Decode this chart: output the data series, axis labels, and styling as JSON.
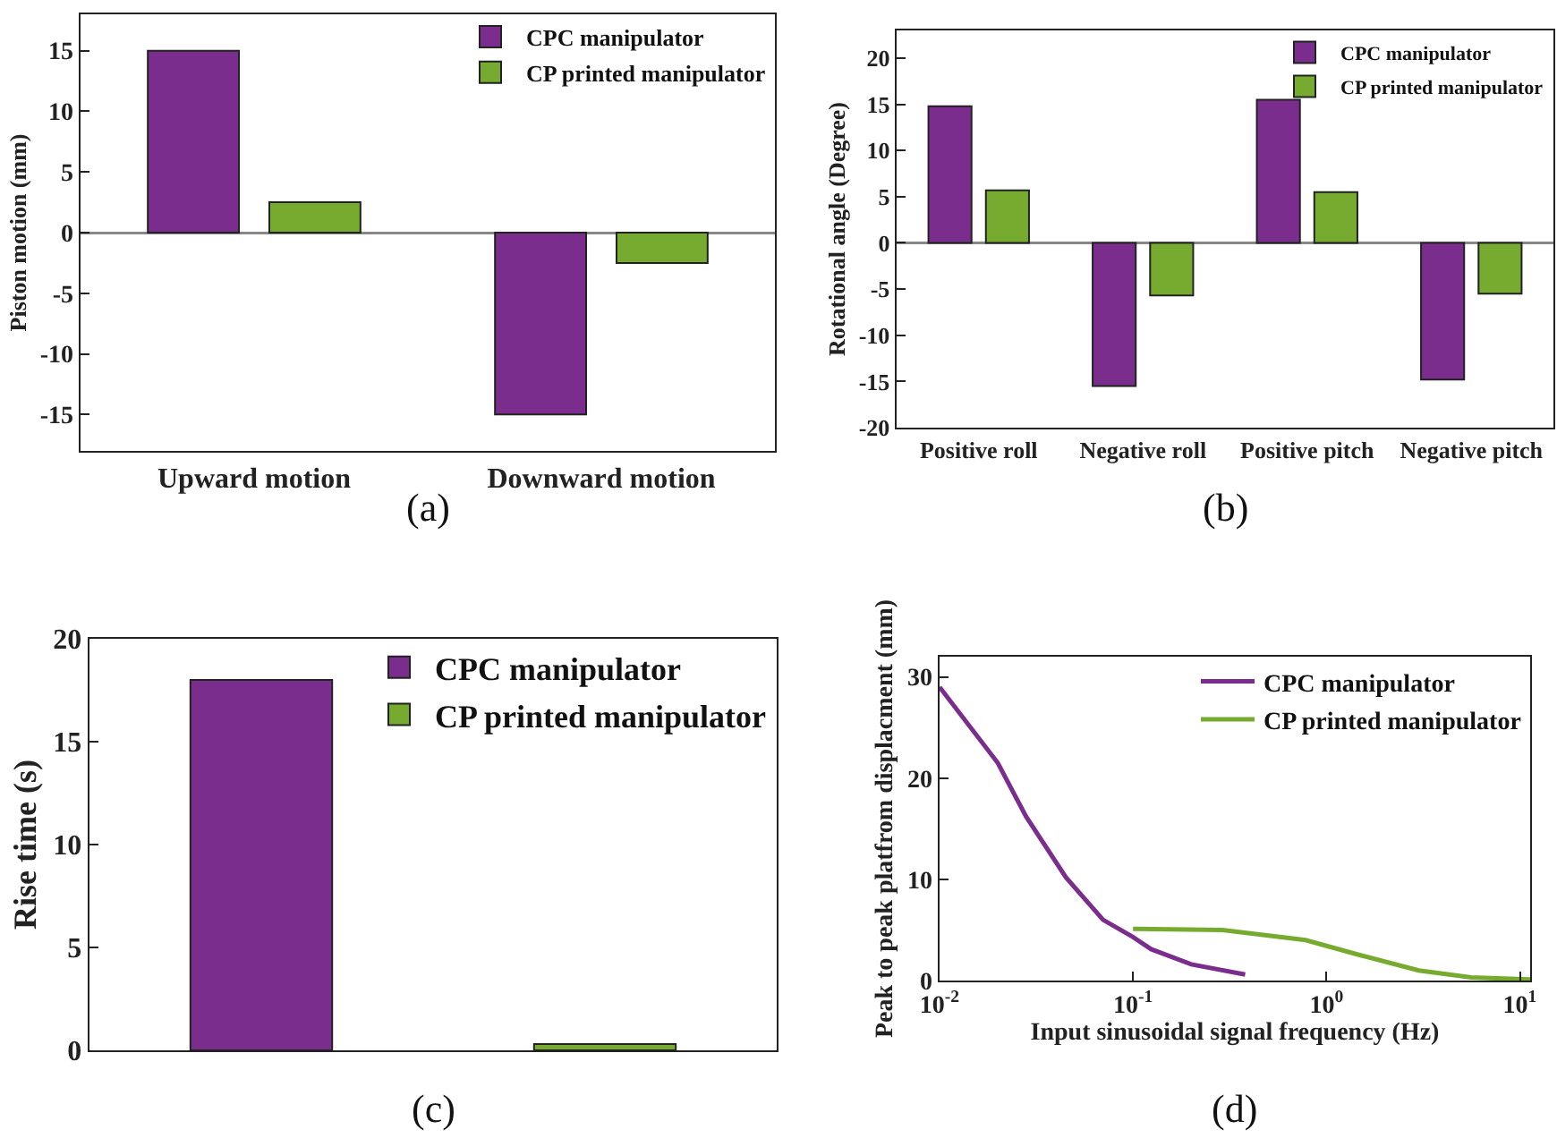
{
  "chart_data": [
    {
      "type": "bar",
      "ylabel": "Piston motion (mm)",
      "categories": [
        "Upward motion",
        "Downward motion"
      ],
      "ylim": [
        -18,
        18
      ],
      "yticks": [
        -15,
        -10,
        -5,
        0,
        5,
        10,
        15
      ],
      "legend": "top right",
      "annotations": [
        "(a)"
      ],
      "series": [
        {
          "name": "CPC manipulator",
          "color": "#7b2d8e",
          "values": [
            15,
            -15
          ]
        },
        {
          "name": "CP printed manipulator",
          "color": "#77ab30",
          "values": [
            2.5,
            -2.5
          ]
        }
      ]
    },
    {
      "type": "bar",
      "ylabel": "Rotational angle (Degree)",
      "categories": [
        "Positive roll",
        "Negative roll",
        "Positive pitch",
        "Negative pitch"
      ],
      "ylim": [
        -20,
        23
      ],
      "yticks": [
        -20,
        -15,
        -10,
        -5,
        0,
        5,
        10,
        15,
        20
      ],
      "legend": "top right",
      "annotations": [
        "(b)"
      ],
      "series": [
        {
          "name": "CPC manipulator",
          "color": "#7b2d8e",
          "values": [
            14.8,
            -15.5,
            15.5,
            -14.8
          ]
        },
        {
          "name": "CP printed manipulator",
          "color": "#77ab30",
          "values": [
            5.7,
            -5.7,
            5.5,
            -5.5
          ]
        }
      ]
    },
    {
      "type": "bar",
      "ylabel": "Rise time (s)",
      "categories": [
        null,
        null
      ],
      "ylim": [
        0,
        20
      ],
      "yticks": [
        0,
        5,
        10,
        15,
        20
      ],
      "legend": "top right",
      "annotations": [
        "(c)"
      ],
      "series": [
        {
          "name": "CPC manipulator",
          "color": "#7b2d8e",
          "values": [
            18,
            null
          ]
        },
        {
          "name": "CP printed manipulator",
          "color": "#77ab30",
          "values": [
            null,
            0.3
          ]
        }
      ]
    },
    {
      "type": "line",
      "xlabel": "Input sinusoidal signal frequency (Hz)",
      "ylabel": "Peak to peak platfrom displacment (mm)",
      "log": "x",
      "xlim": [
        0.01,
        11.3
      ],
      "xticks": [
        {
          "value": 0.01,
          "label": "10$^{-2}$"
        },
        {
          "value": 0.1,
          "label": "10$^{-1}$"
        },
        {
          "value": 1,
          "label": "10$^{0}$"
        },
        {
          "value": 10,
          "label": "10$^{1}$"
        }
      ],
      "ylim": [
        0,
        32
      ],
      "yticks": [
        0,
        10,
        20,
        30
      ],
      "legend": "top right",
      "annotations": [
        "(d)"
      ],
      "series": [
        {
          "name": "CPC manipulator",
          "color": "#7b2d8e",
          "x": [
            0.01,
            0.02,
            0.028,
            0.045,
            0.07,
            0.1,
            0.124,
            0.2,
            0.38
          ],
          "values": [
            29,
            21.5,
            16.2,
            10.2,
            6,
            4.3,
            3.1,
            1.6,
            0.6
          ]
        },
        {
          "name": "CP printed manipulator",
          "color": "#77ab30",
          "x": [
            0.1,
            0.29,
            0.78,
            1.5,
            3,
            5.6,
            11.3
          ],
          "values": [
            5.1,
            5.0,
            4.0,
            2.5,
            1.0,
            0.3,
            0.1
          ]
        }
      ]
    }
  ]
}
